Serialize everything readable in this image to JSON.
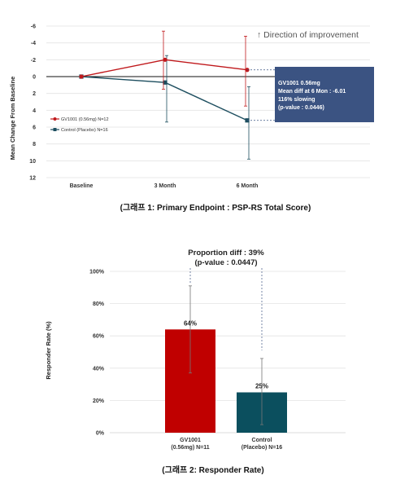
{
  "chart_data": [
    {
      "type": "line",
      "caption": "(그래프  1: Primary Endpoint : PSP-RS Total Score)",
      "ylabel": "Mean Change From Baseline",
      "categories": [
        "Baseline",
        "3 Month",
        "6 Month"
      ],
      "yticks": [
        "-6",
        "-4",
        "-2",
        "0",
        "2",
        "4",
        "6",
        "8",
        "10",
        "12"
      ],
      "ylim": [
        -6,
        12
      ],
      "y_inverted": true,
      "direction_note": "↑ Direction of improvement",
      "series": [
        {
          "name": "GV1001 (0.56mg) N=12",
          "color": "#c0191c",
          "values": [
            0,
            -2.0,
            -0.8
          ],
          "err_low": [
            0,
            -5.4,
            -4.8
          ],
          "err_high": [
            0,
            1.5,
            3.5
          ]
        },
        {
          "name": "Control (Placebo) N=16",
          "color": "#1d4e5f",
          "values": [
            0,
            0.7,
            5.2
          ],
          "err_low": [
            0,
            -2.5,
            1.2
          ],
          "err_high": [
            0,
            5.4,
            9.8
          ]
        }
      ],
      "annotation": {
        "lines": [
          "GV1001 0.56mg",
          "Mean diff at 6 Mon : -6.01",
          "116% slowing",
          "(p-value : 0.0446)"
        ],
        "bg_color": "#3b5382"
      }
    },
    {
      "type": "bar",
      "caption": "(그래프  2: Responder Rate)",
      "ylabel": "Responder Rate (%)",
      "categories": [
        [
          "GV1001",
          "(0.56mg) N=11"
        ],
        [
          "Control",
          "(Placebo) N=16"
        ]
      ],
      "values": [
        64,
        25
      ],
      "value_labels": [
        "64%",
        "25%"
      ],
      "err_low": [
        37,
        5
      ],
      "err_high": [
        91,
        46
      ],
      "colors": [
        "#c00000",
        "#0b4f5e"
      ],
      "yticks": [
        "0%",
        "20%",
        "40%",
        "60%",
        "80%",
        "100%"
      ],
      "ylim": [
        0,
        100
      ],
      "annotation": [
        "Proportion diff : 39%",
        "(p-value : 0.0447)"
      ]
    }
  ]
}
